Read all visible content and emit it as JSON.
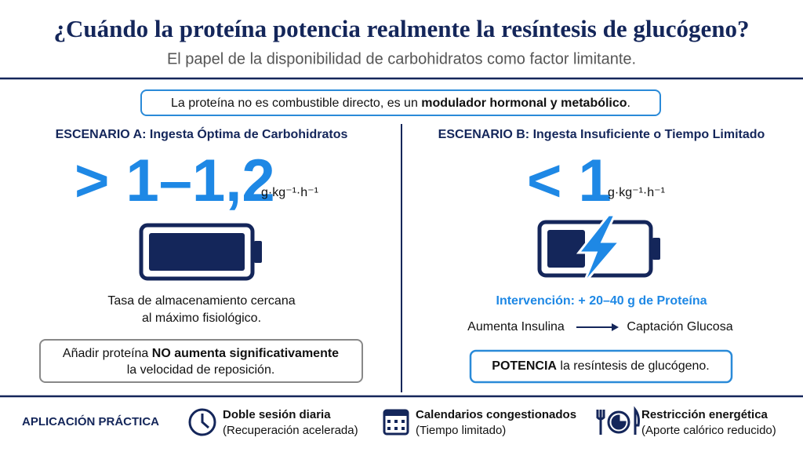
{
  "header": {
    "title": "¿Cuándo la proteína potencia realmente la resíntesis de glucógeno?",
    "subtitle": "El papel de la disponibilidad de carbohidratos como factor limitante."
  },
  "callout": {
    "parts": [
      "La proteína no es combustible directo, es un ",
      "modulador hormonal y metabólico",
      "."
    ]
  },
  "scenarios": [
    {
      "heading": "ESCENARIO A: Ingesta Óptima de Carbohidratos",
      "value": "> 1–1,2",
      "unit": "g·kg⁻¹·h⁻¹",
      "description": [
        "Tasa de almacenamiento cercana",
        "al máximo fisiológico."
      ],
      "note": [
        [
          "Añadir proteína ",
          "NO aumenta significativamente"
        ],
        [
          "la velocidad de reposición."
        ]
      ]
    },
    {
      "heading": "ESCENARIO B: Ingesta Insuficiente o Tiempo Limitado",
      "value": "< 1",
      "unit": "g·kg⁻¹·h⁻¹",
      "intervention": "Intervención: + 20–40 g de Proteína",
      "flow": {
        "from": "Aumenta Insulina",
        "to": "Captación Glucosa"
      },
      "note": [
        [
          "POTENCIA",
          " la resíntesis de glucógeno."
        ]
      ]
    }
  ],
  "footer": {
    "label": "APLICACIÓN PRÁCTICA",
    "items": [
      {
        "title": "Doble sesión diaria",
        "detail": "(Recuperación acelerada)"
      },
      {
        "title": "Calendarios congestionados",
        "detail": "(Tiempo limitado)"
      },
      {
        "title": "Restricción energética",
        "detail": "(Aporte calórico reducido)"
      }
    ]
  }
}
